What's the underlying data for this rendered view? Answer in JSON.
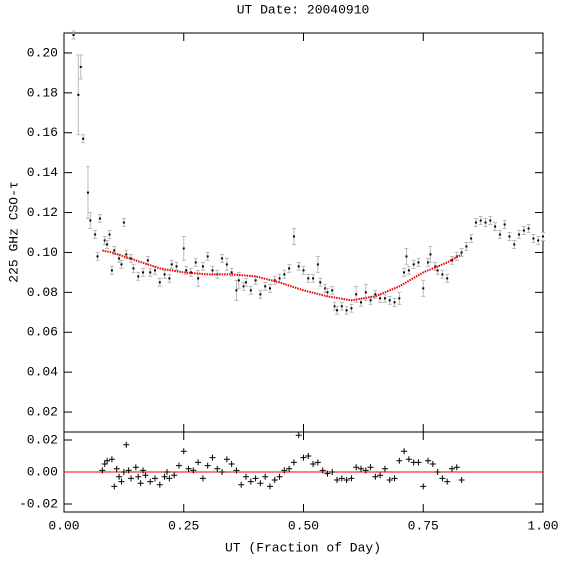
{
  "chart_data": [
    {
      "type": "scatter",
      "title": "UT Date: 20040910",
      "y_label": "225 GHz CSO-τ",
      "xlim": [
        0,
        1
      ],
      "ylim": [
        0.01,
        0.21
      ],
      "yticks": [
        {
          "value": 0.02,
          "label": "0.02"
        },
        {
          "value": 0.04,
          "label": "0.04"
        },
        {
          "value": 0.06,
          "label": "0.06"
        },
        {
          "value": 0.08,
          "label": "0.08"
        },
        {
          "value": 0.1,
          "label": "0.10"
        },
        {
          "value": 0.12,
          "label": "0.12"
        },
        {
          "value": 0.14,
          "label": "0.14"
        },
        {
          "value": 0.16,
          "label": "0.16"
        },
        {
          "value": 0.18,
          "label": "0.18"
        },
        {
          "value": 0.2,
          "label": "0.20"
        }
      ],
      "series": [
        {
          "color": "#000000",
          "error_color": "#bbbbbb",
          "x": [
            0.02,
            0.03,
            0.035,
            0.04,
            0.05,
            0.055,
            0.065,
            0.07,
            0.075,
            0.085,
            0.09,
            0.095,
            0.1,
            0.105,
            0.115,
            0.12,
            0.125,
            0.13,
            0.14,
            0.145,
            0.155,
            0.165,
            0.175,
            0.18,
            0.19,
            0.2,
            0.21,
            0.22,
            0.225,
            0.235,
            0.25,
            0.255,
            0.265,
            0.275,
            0.28,
            0.29,
            0.3,
            0.31,
            0.32,
            0.33,
            0.34,
            0.35,
            0.36,
            0.365,
            0.375,
            0.38,
            0.39,
            0.4,
            0.41,
            0.42,
            0.43,
            0.44,
            0.45,
            0.46,
            0.47,
            0.48,
            0.49,
            0.5,
            0.51,
            0.52,
            0.53,
            0.535,
            0.545,
            0.55,
            0.56,
            0.565,
            0.57,
            0.58,
            0.59,
            0.6,
            0.61,
            0.62,
            0.63,
            0.64,
            0.65,
            0.66,
            0.67,
            0.68,
            0.69,
            0.7,
            0.71,
            0.715,
            0.72,
            0.73,
            0.74,
            0.75,
            0.76,
            0.765,
            0.775,
            0.78,
            0.79,
            0.8,
            0.81,
            0.82,
            0.83,
            0.84,
            0.85,
            0.86,
            0.87,
            0.88,
            0.89,
            0.9,
            0.91,
            0.92,
            0.93,
            0.94,
            0.95,
            0.96,
            0.97,
            0.98,
            0.99,
            1.0
          ],
          "values": [
            0.209,
            0.179,
            0.193,
            0.157,
            0.13,
            0.116,
            0.109,
            0.098,
            0.117,
            0.106,
            0.104,
            0.109,
            0.091,
            0.101,
            0.097,
            0.094,
            0.115,
            0.099,
            0.097,
            0.092,
            0.088,
            0.09,
            0.096,
            0.09,
            0.091,
            0.085,
            0.089,
            0.087,
            0.094,
            0.093,
            0.102,
            0.091,
            0.09,
            0.095,
            0.087,
            0.093,
            0.098,
            0.091,
            0.089,
            0.097,
            0.094,
            0.09,
            0.081,
            0.086,
            0.083,
            0.085,
            0.081,
            0.086,
            0.079,
            0.083,
            0.082,
            0.086,
            0.087,
            0.089,
            0.092,
            0.108,
            0.093,
            0.091,
            0.087,
            0.087,
            0.094,
            0.085,
            0.082,
            0.08,
            0.081,
            0.073,
            0.071,
            0.073,
            0.071,
            0.072,
            0.079,
            0.075,
            0.08,
            0.076,
            0.079,
            0.077,
            0.077,
            0.076,
            0.075,
            0.077,
            0.09,
            0.098,
            0.091,
            0.094,
            0.095,
            0.082,
            0.095,
            0.099,
            0.093,
            0.091,
            0.089,
            0.087,
            0.096,
            0.098,
            0.1,
            0.103,
            0.107,
            0.115,
            0.116,
            0.115,
            0.116,
            0.113,
            0.109,
            0.114,
            0.108,
            0.104,
            0.109,
            0.111,
            0.112,
            0.107,
            0.106,
            0.108
          ],
          "errors": [
            0.002,
            0.02,
            0.006,
            0.002,
            0.013,
            0.004,
            0.002,
            0.002,
            0.002,
            0.002,
            0.002,
            0.002,
            0.002,
            0.002,
            0.002,
            0.002,
            0.002,
            0.002,
            0.002,
            0.002,
            0.002,
            0.002,
            0.002,
            0.002,
            0.002,
            0.002,
            0.002,
            0.002,
            0.002,
            0.002,
            0.006,
            0.002,
            0.002,
            0.002,
            0.004,
            0.002,
            0.002,
            0.002,
            0.002,
            0.002,
            0.003,
            0.002,
            0.005,
            0.004,
            0.002,
            0.002,
            0.002,
            0.002,
            0.002,
            0.002,
            0.002,
            0.002,
            0.002,
            0.002,
            0.002,
            0.004,
            0.002,
            0.002,
            0.002,
            0.002,
            0.004,
            0.002,
            0.002,
            0.002,
            0.002,
            0.002,
            0.002,
            0.002,
            0.002,
            0.002,
            0.004,
            0.002,
            0.004,
            0.002,
            0.002,
            0.002,
            0.002,
            0.002,
            0.002,
            0.003,
            0.002,
            0.004,
            0.002,
            0.002,
            0.002,
            0.004,
            0.002,
            0.004,
            0.002,
            0.002,
            0.002,
            0.002,
            0.002,
            0.002,
            0.002,
            0.002,
            0.002,
            0.002,
            0.002,
            0.002,
            0.002,
            0.002,
            0.002,
            0.002,
            0.002,
            0.002,
            0.002,
            0.002,
            0.002,
            0.002,
            0.002,
            0.002
          ]
        },
        {
          "color": "#ee0000",
          "x": [
            0.08,
            0.1,
            0.15,
            0.2,
            0.25,
            0.3,
            0.35,
            0.4,
            0.45,
            0.5,
            0.55,
            0.6,
            0.65,
            0.7,
            0.75,
            0.8,
            0.83
          ],
          "values": [
            0.101,
            0.1,
            0.096,
            0.092,
            0.09,
            0.089,
            0.089,
            0.088,
            0.085,
            0.081,
            0.078,
            0.076,
            0.078,
            0.083,
            0.09,
            0.095,
            0.099
          ]
        }
      ]
    },
    {
      "type": "residual",
      "x_label": "UT (Fraction of Day)",
      "xlim": [
        0,
        1
      ],
      "ylim": [
        -0.025,
        0.025
      ],
      "xticks": [
        {
          "value": 0,
          "label": "0.00"
        },
        {
          "value": 0.25,
          "label": "0.25"
        },
        {
          "value": 0.5,
          "label": "0.50"
        },
        {
          "value": 0.75,
          "label": "0.75"
        },
        {
          "value": 1,
          "label": "1.00"
        }
      ],
      "yticks": [
        {
          "value": -0.02,
          "label": "-0.02"
        },
        {
          "value": 0,
          "label": "0.00"
        },
        {
          "value": 0.02,
          "label": "0.02"
        }
      ],
      "reference_line": 0,
      "reference_color": "#ee0000",
      "color": "#000000",
      "x": [
        0.08,
        0.085,
        0.09,
        0.1,
        0.105,
        0.11,
        0.115,
        0.12,
        0.125,
        0.13,
        0.135,
        0.14,
        0.15,
        0.155,
        0.16,
        0.165,
        0.17,
        0.18,
        0.19,
        0.2,
        0.21,
        0.215,
        0.22,
        0.23,
        0.24,
        0.25,
        0.26,
        0.27,
        0.28,
        0.29,
        0.3,
        0.31,
        0.32,
        0.33,
        0.34,
        0.35,
        0.36,
        0.37,
        0.38,
        0.39,
        0.4,
        0.41,
        0.42,
        0.43,
        0.44,
        0.45,
        0.46,
        0.47,
        0.48,
        0.49,
        0.5,
        0.51,
        0.52,
        0.53,
        0.54,
        0.55,
        0.56,
        0.57,
        0.58,
        0.59,
        0.6,
        0.61,
        0.62,
        0.63,
        0.64,
        0.65,
        0.66,
        0.67,
        0.68,
        0.69,
        0.7,
        0.71,
        0.72,
        0.73,
        0.74,
        0.75,
        0.76,
        0.77,
        0.78,
        0.79,
        0.8,
        0.81,
        0.82,
        0.83
      ],
      "values": [
        0.001,
        0.005,
        0.007,
        0.008,
        -0.009,
        0.002,
        -0.003,
        -0.006,
        0.0,
        0.017,
        0.001,
        -0.004,
        0.003,
        -0.003,
        -0.007,
        0.001,
        -0.002,
        -0.006,
        -0.004,
        -0.008,
        -0.003,
        0.0,
        -0.004,
        -0.002,
        0.004,
        0.013,
        0.002,
        0.001,
        0.006,
        -0.004,
        0.004,
        0.009,
        0.002,
        0.0,
        0.008,
        0.005,
        0.001,
        -0.008,
        -0.003,
        -0.006,
        -0.004,
        -0.007,
        -0.003,
        -0.009,
        -0.005,
        -0.003,
        0.001,
        0.002,
        0.006,
        0.023,
        0.009,
        0.01,
        0.005,
        0.006,
        0.001,
        -0.001,
        0.0,
        -0.005,
        -0.004,
        -0.005,
        -0.004,
        0.003,
        0.002,
        0.001,
        0.003,
        -0.003,
        -0.002,
        0.002,
        -0.005,
        -0.004,
        0.007,
        0.013,
        0.008,
        0.006,
        0.006,
        -0.009,
        0.007,
        0.005,
        0.0,
        -0.004,
        -0.006,
        0.002,
        0.003,
        -0.005
      ]
    }
  ]
}
